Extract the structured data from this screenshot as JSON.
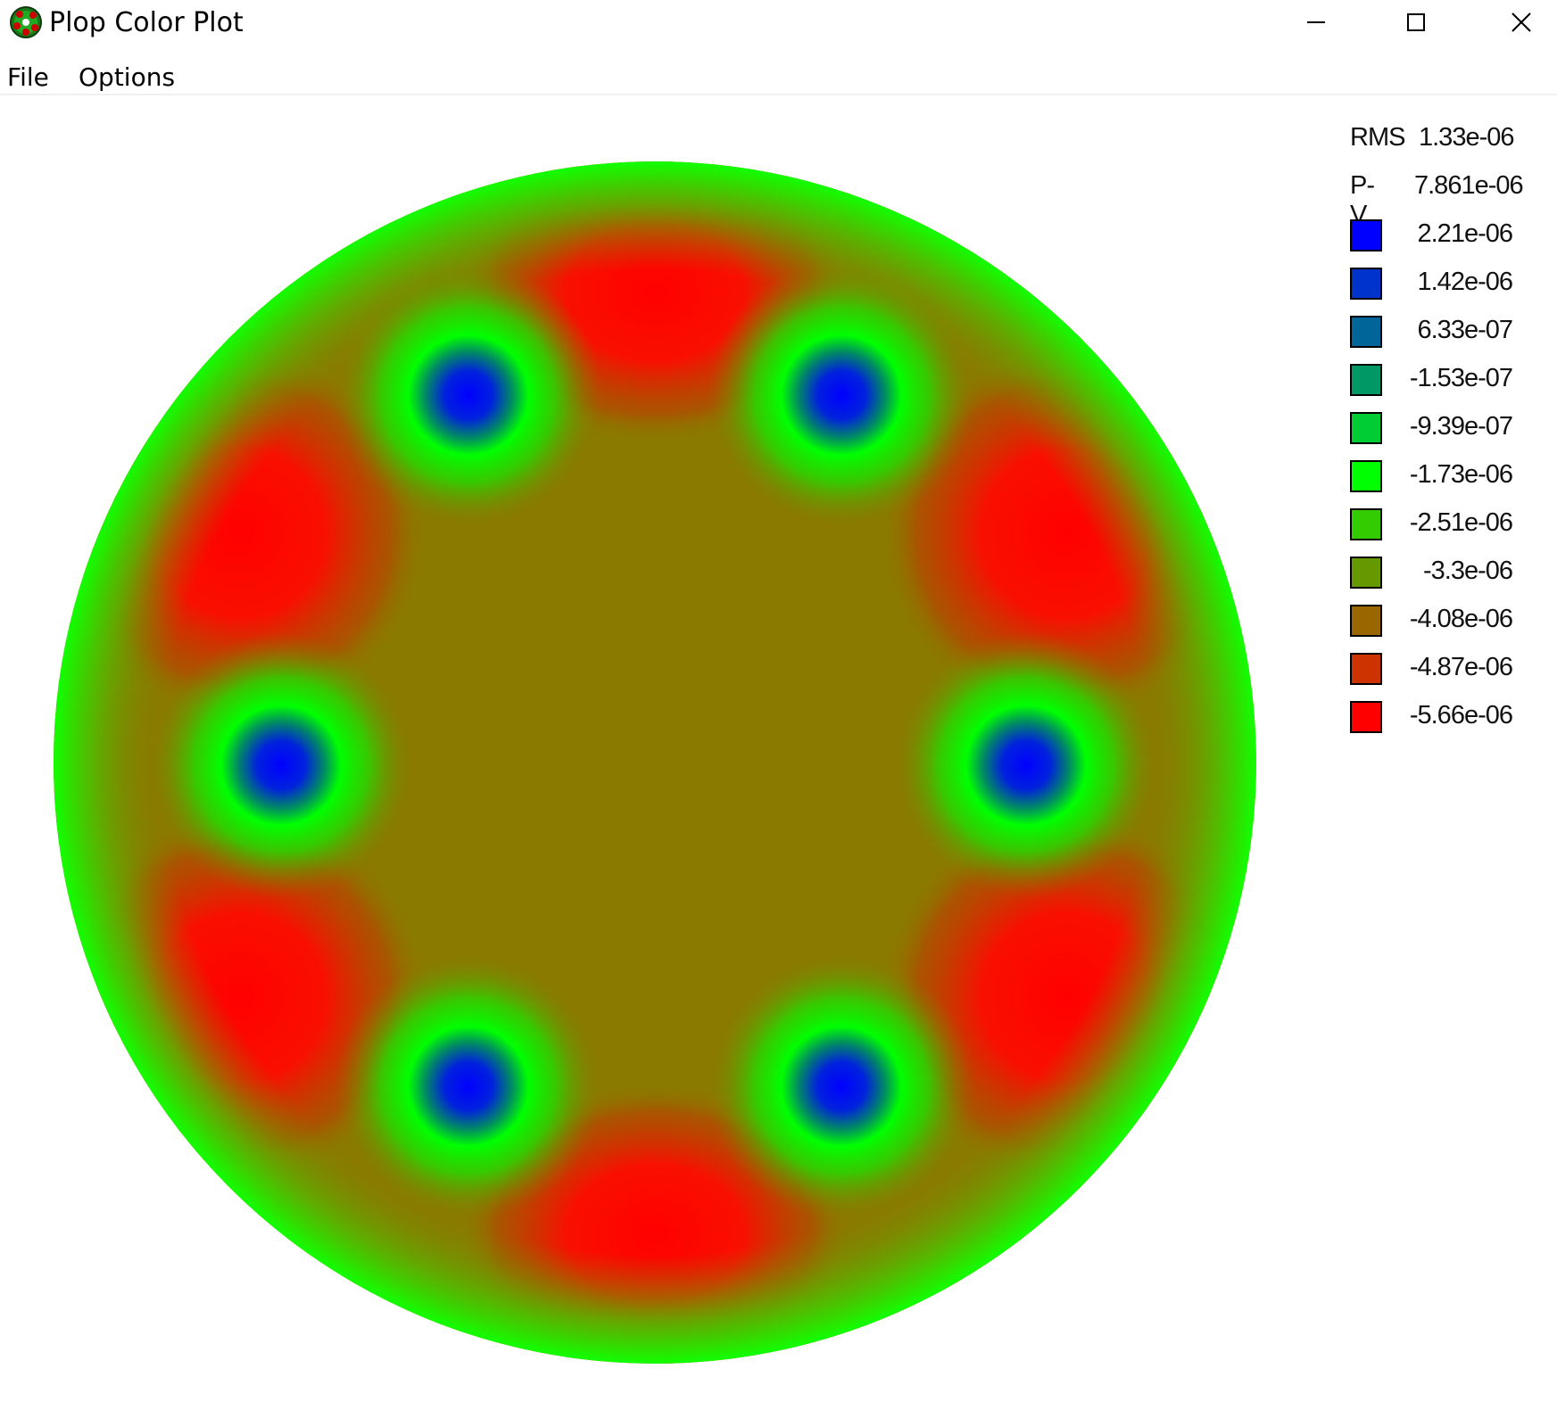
{
  "window": {
    "title": "Plop Color Plot",
    "icon": "plop-app-icon",
    "controls": {
      "minimize_icon": "minimize-icon",
      "maximize_icon": "maximize-icon",
      "close_icon": "close-icon"
    }
  },
  "menu": {
    "file": "File",
    "options": "Options"
  },
  "stats": {
    "rms_label": "RMS",
    "rms_value": "1.33e-06",
    "pv_label": "P-V",
    "pv_value": "7.861e-06"
  },
  "legend": [
    {
      "value": "2.21e-06",
      "color": "#0000ff"
    },
    {
      "value": "1.42e-06",
      "color": "#0033cc"
    },
    {
      "value": "6.33e-07",
      "color": "#006699"
    },
    {
      "value": "-1.53e-07",
      "color": "#009966"
    },
    {
      "value": "-9.39e-07",
      "color": "#00cc33"
    },
    {
      "value": "-1.73e-06",
      "color": "#00ff00"
    },
    {
      "value": "-2.51e-06",
      "color": "#33cc00"
    },
    {
      "value": "-3.3e-06",
      "color": "#669900"
    },
    {
      "value": "-4.08e-06",
      "color": "#996600"
    },
    {
      "value": "-4.87e-06",
      "color": "#cc3300"
    },
    {
      "value": "-5.66e-06",
      "color": "#ff0000"
    }
  ],
  "chart_data": {
    "type": "heatmap",
    "shape": "annulus",
    "description_values": {
      "low_spots_blue": 6,
      "high_spots_red": 6
    },
    "colors": {
      "background": "#8a7a00",
      "rim": "#00ff00",
      "high": "#ff0000",
      "low": "#0000ff",
      "halo": "#00ff00"
    }
  }
}
